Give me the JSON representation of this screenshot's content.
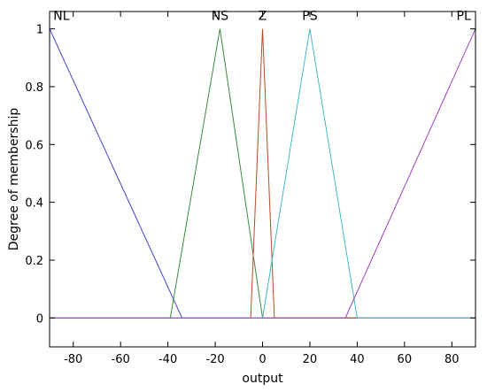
{
  "chart_data": {
    "type": "line",
    "title": "",
    "xlabel": "output",
    "ylabel": "Degree of membership",
    "xlim": [
      -90,
      90
    ],
    "ylim": [
      -0.1,
      1.06
    ],
    "xticks": [
      -80,
      -60,
      -40,
      -20,
      0,
      20,
      40,
      60,
      80
    ],
    "yticks": [
      0,
      0.2,
      0.4,
      0.6,
      0.8,
      1
    ],
    "grid": false,
    "series": [
      {
        "name": "NL",
        "color": "#4444cc",
        "label_at": [
          -85,
          1
        ],
        "points": [
          [
            -90,
            1
          ],
          [
            -34,
            0
          ],
          [
            90,
            0
          ]
        ]
      },
      {
        "name": "NS",
        "color": "#3d8a3d",
        "label_at": [
          -18,
          1
        ],
        "points": [
          [
            -90,
            0
          ],
          [
            -39,
            0
          ],
          [
            -18,
            1
          ],
          [
            0,
            0
          ],
          [
            90,
            0
          ]
        ]
      },
      {
        "name": "Z",
        "color": "#b84a2a",
        "label_at": [
          0,
          1
        ],
        "points": [
          [
            -90,
            0
          ],
          [
            -5,
            0
          ],
          [
            0,
            1
          ],
          [
            5,
            0
          ],
          [
            90,
            0
          ]
        ]
      },
      {
        "name": "PS",
        "color": "#40b8cc",
        "label_at": [
          20,
          1
        ],
        "points": [
          [
            -90,
            0
          ],
          [
            0,
            0
          ],
          [
            20,
            1
          ],
          [
            40,
            0
          ],
          [
            90,
            0
          ]
        ]
      },
      {
        "name": "PL",
        "color": "#a040c0",
        "label_at": [
          85,
          1
        ],
        "points": [
          [
            -90,
            0
          ],
          [
            35,
            0
          ],
          [
            90,
            1
          ]
        ]
      }
    ]
  }
}
